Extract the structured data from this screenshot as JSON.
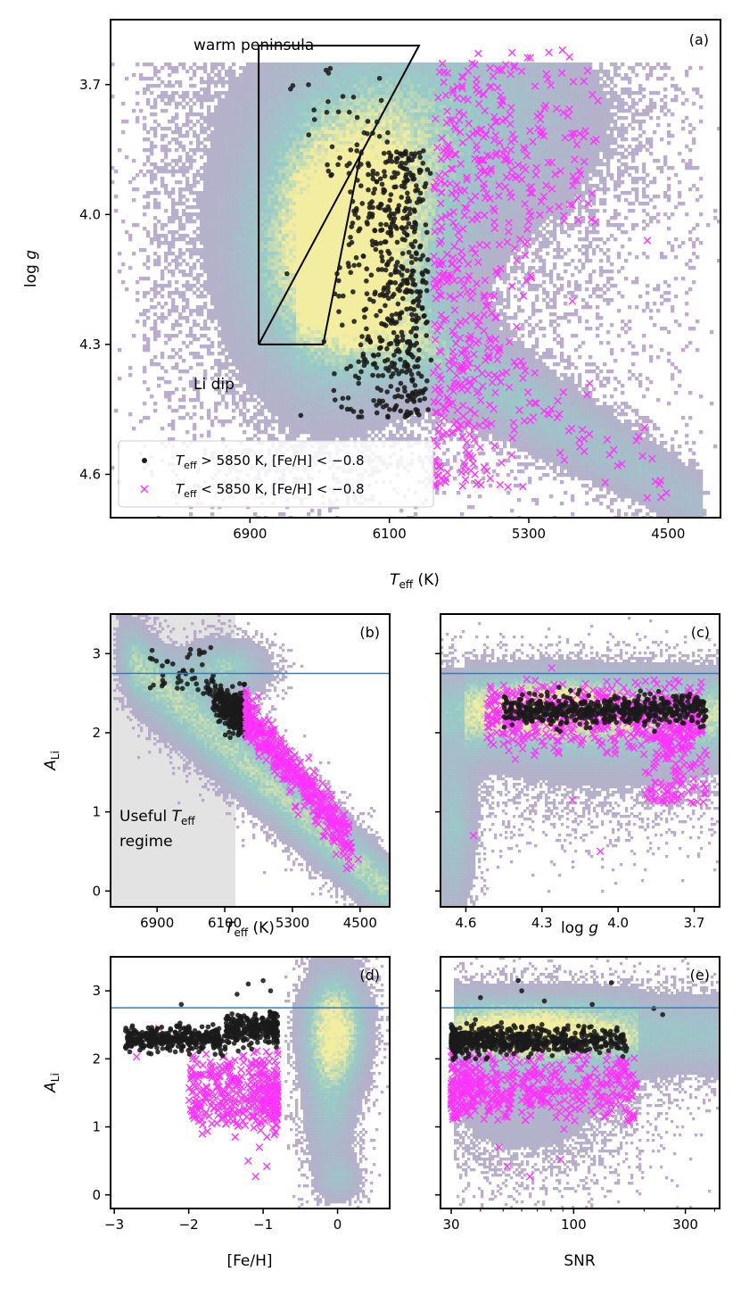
{
  "colors": {
    "frame": "#000000",
    "useful_marker": "#1a1a1a",
    "low_marker": "#ff33ff",
    "reference_line": "#3a7ab8",
    "shade": "#e3e3e3",
    "density_low": "#b9a3c9",
    "density_mid": "#8fc7c2",
    "density_high": "#f2ec9a"
  },
  "chart_data": [
    {
      "id": "a",
      "type": "scatter",
      "tag": "(a)",
      "xlabel": "T_eff (K)",
      "ylabel": "log g",
      "xlim": [
        7700,
        4200
      ],
      "ylim": [
        4.7,
        3.55
      ],
      "xticks": [
        6900,
        6100,
        5300,
        4500
      ],
      "xtick_labels": [
        "6900",
        "6100",
        "5300",
        "4500"
      ],
      "yticks": [
        3.7,
        4.0,
        4.3,
        4.6
      ],
      "ytick_labels": [
        "3.7",
        "4.0",
        "4.3",
        "4.6"
      ],
      "background": "density histogram of all stars",
      "regions": [
        {
          "name": "warm peninsula",
          "label": "warm peninsula",
          "outline": [
            [
              6850,
              3.6
            ],
            [
              6850,
              4.3
            ],
            [
              5930,
              3.6
            ]
          ]
        },
        {
          "name": "Li dip",
          "label": "Li dip",
          "outline": [
            [
              6850,
              4.3
            ],
            [
              6480,
              4.3
            ],
            [
              6220,
              3.85
            ],
            [
              6850,
              4.3
            ]
          ]
        }
      ],
      "legend": {
        "position": "lower-left",
        "entries": [
          {
            "label": "T_eff > 5850 K, [Fe/H] < −0.8",
            "marker": "dot"
          },
          {
            "label": "T_eff < 5850 K, [Fe/H] < −0.8",
            "marker": "x"
          }
        ]
      },
      "series": [
        {
          "name": "T_eff > 5850 K, [Fe/H] < −0.8",
          "marker": "dot",
          "n_points": 800,
          "teff_range": [
            5850,
            6870
          ],
          "logg_range": [
            3.62,
            4.5
          ]
        },
        {
          "name": "T_eff < 5850 K, [Fe/H] < −0.8",
          "marker": "x",
          "n_points": 700,
          "teff_range": [
            4480,
            5850
          ],
          "logg_range": [
            3.62,
            4.63
          ]
        }
      ]
    },
    {
      "id": "b",
      "type": "scatter",
      "tag": "(b)",
      "xlabel": "T_eff (K)",
      "ylabel": "A_Li",
      "xlim": [
        7450,
        4150
      ],
      "ylim": [
        -0.2,
        3.5
      ],
      "xticks": [
        6900,
        6100,
        5300,
        4500
      ],
      "xtick_labels": [
        "6900",
        "6100",
        "5300",
        "4500"
      ],
      "yticks": [
        0,
        1,
        2,
        3
      ],
      "ytick_labels": [
        "0",
        "1",
        "2",
        "3"
      ],
      "reference_line": 2.75,
      "shaded_region": {
        "label": "Useful T_eff regime",
        "teff_range": [
          5850,
          7450
        ]
      },
      "series": [
        {
          "name": "T_eff > 5850 K",
          "marker": "dot",
          "A_Li_range": [
            2.0,
            3.15
          ]
        },
        {
          "name": "T_eff < 5850 K",
          "marker": "x",
          "A_Li_range": [
            0.25,
            2.5
          ]
        }
      ]
    },
    {
      "id": "c",
      "type": "scatter",
      "tag": "(c)",
      "xlabel": "log g",
      "xlim": [
        4.7,
        3.6
      ],
      "ylim": [
        -0.2,
        3.5
      ],
      "xticks": [
        4.6,
        4.3,
        4.0,
        3.7
      ],
      "xtick_labels": [
        "4.6",
        "4.3",
        "4.0",
        "3.7"
      ],
      "yticks": [
        0,
        1,
        2,
        3
      ],
      "reference_line": 2.75,
      "series": [
        {
          "name": "T_eff > 5850 K",
          "marker": "dot",
          "A_Li_range": [
            2.0,
            3.15
          ]
        },
        {
          "name": "T_eff < 5850 K",
          "marker": "x",
          "A_Li_range": [
            0.5,
            2.5
          ]
        }
      ]
    },
    {
      "id": "d",
      "type": "scatter",
      "tag": "(d)",
      "xlabel": "[Fe/H]",
      "ylabel": "A_Li",
      "xlim": [
        -3.05,
        0.7
      ],
      "ylim": [
        -0.2,
        3.5
      ],
      "xticks": [
        -3,
        -2,
        -1,
        0
      ],
      "xtick_labels": [
        "−3",
        "−2",
        "−1",
        "0"
      ],
      "yticks": [
        0,
        1,
        2,
        3
      ],
      "ytick_labels": [
        "0",
        "1",
        "2",
        "3"
      ],
      "reference_line": 2.75,
      "series": [
        {
          "name": "T_eff > 5850 K",
          "marker": "dot",
          "feh_range": [
            -2.9,
            -0.8
          ],
          "A_Li_range": [
            2.0,
            3.15
          ]
        },
        {
          "name": "T_eff < 5850 K",
          "marker": "x",
          "feh_range": [
            -2.7,
            -0.8
          ],
          "A_Li_range": [
            0.25,
            2.5
          ]
        }
      ]
    },
    {
      "id": "e",
      "type": "scatter",
      "tag": "(e)",
      "xlabel": "SNR",
      "xscale": "log",
      "xlim": [
        27,
        420
      ],
      "ylim": [
        -0.2,
        3.5
      ],
      "xticks": [
        30,
        100,
        300
      ],
      "xtick_labels": [
        "30",
        "100",
        "300"
      ],
      "yticks": [
        0,
        1,
        2,
        3
      ],
      "reference_line": 2.75,
      "series": [
        {
          "name": "T_eff > 5850 K",
          "marker": "dot",
          "snr_range": [
            30,
            260
          ],
          "A_Li_range": [
            1.9,
            3.15
          ]
        },
        {
          "name": "T_eff < 5850 K",
          "marker": "x",
          "snr_range": [
            30,
            170
          ],
          "A_Li_range": [
            0.25,
            2.45
          ]
        }
      ]
    }
  ],
  "text": {
    "a_tag": "(a)",
    "b_tag": "(b)",
    "c_tag": "(c)",
    "d_tag": "(d)",
    "e_tag": "(e)",
    "warm_peninsula": "warm peninsula",
    "li_dip": "Li dip",
    "useful_line1": "Useful ",
    "useful_T": "T",
    "useful_eff": "eff",
    "useful_line2": "regime",
    "legend1_T": "T",
    "legend1_sub": "eff",
    "legend1_rest": " > 5850 K, [Fe/H] < −0.8",
    "legend2_T": "T",
    "legend2_sub": "eff",
    "legend2_rest": " < 5850 K, [Fe/H] < −0.8",
    "teff_T": "T",
    "teff_sub": "eff",
    "teff_unit": " (K)",
    "logg_log": "log ",
    "logg_g": "g",
    "ali_A": "A",
    "ali_sub": "Li",
    "feh_label": "[Fe/H]",
    "snr_label": "SNR",
    "a_xticks": [
      "6900",
      "6100",
      "5300",
      "4500"
    ],
    "a_yticks": [
      "3.7",
      "4.0",
      "4.3",
      "4.6"
    ],
    "b_xticks": [
      "6900",
      "6100",
      "5300",
      "4500"
    ],
    "by_ticks": [
      "0",
      "1",
      "2",
      "3"
    ],
    "c_xticks": [
      "4.6",
      "4.3",
      "4.0",
      "3.7"
    ],
    "d_xticks": [
      "−3",
      "−2",
      "−1",
      "0"
    ],
    "dy_ticks": [
      "0",
      "1",
      "2",
      "3"
    ],
    "e_xticks": [
      "30",
      "100",
      "300"
    ]
  }
}
